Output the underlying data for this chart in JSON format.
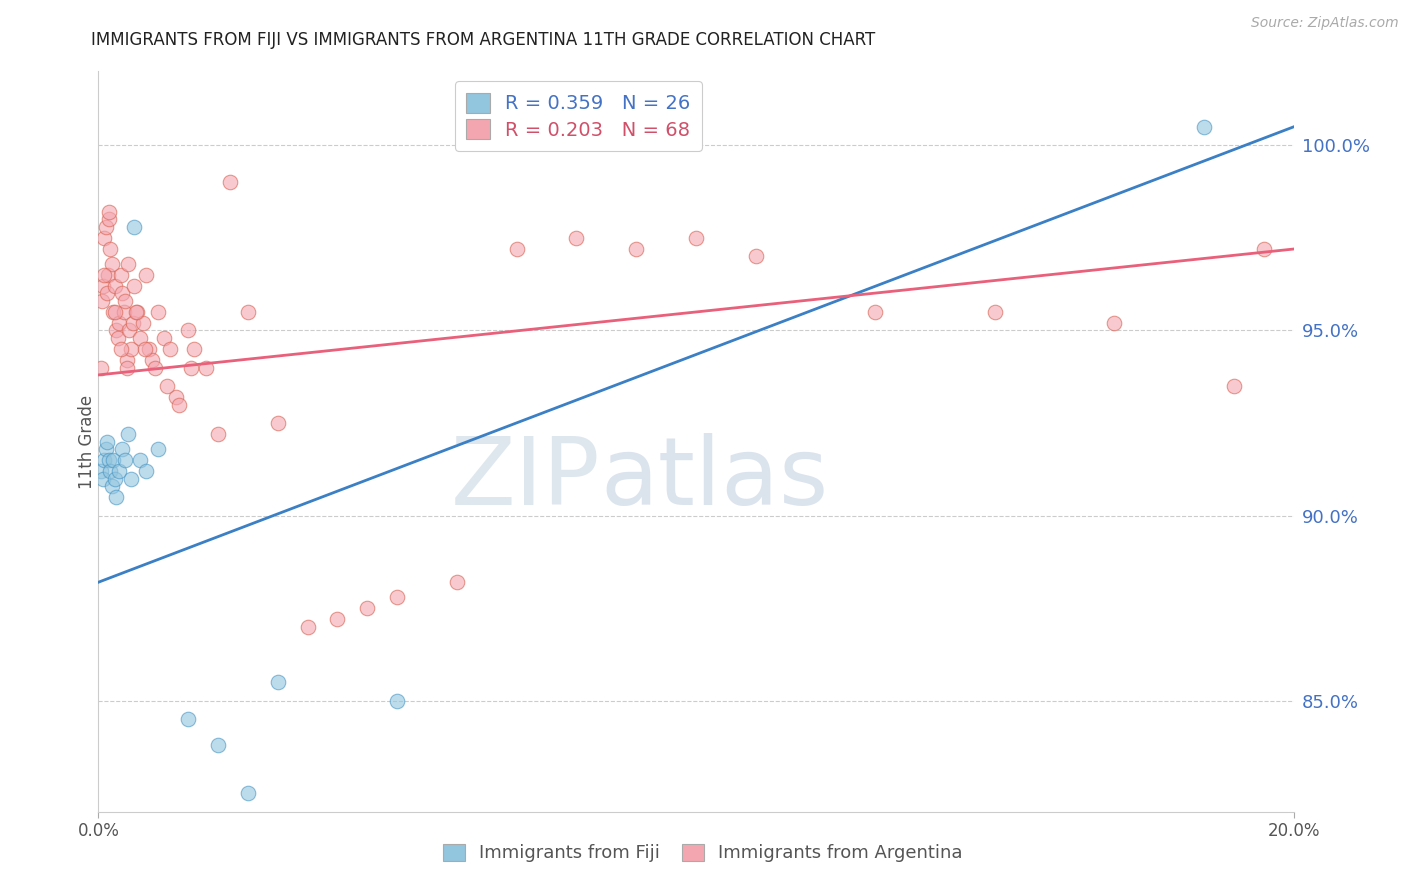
{
  "title": "IMMIGRANTS FROM FIJI VS IMMIGRANTS FROM ARGENTINA 11TH GRADE CORRELATION CHART",
  "source": "Source: ZipAtlas.com",
  "ylabel": "11th Grade",
  "yticks": [
    85.0,
    90.0,
    95.0,
    100.0
  ],
  "xlim": [
    0.0,
    20.0
  ],
  "ylim": [
    82.0,
    102.0
  ],
  "xtick_positions": [
    0.0,
    20.0
  ],
  "xtick_labels": [
    "0.0%",
    "20.0%"
  ],
  "fiji_R": 0.359,
  "fiji_N": 26,
  "argentina_R": 0.203,
  "argentina_N": 68,
  "fiji_color": "#92c5de",
  "argentina_color": "#f4a6b0",
  "fiji_edge_color": "#4393c3",
  "argentina_edge_color": "#d6604d",
  "fiji_line_color": "#3b7fc4",
  "argentina_line_color": "#e8607a",
  "watermark_zip": "ZIP",
  "watermark_atlas": "atlas",
  "fiji_line_x0": 0.0,
  "fiji_line_y0": 88.2,
  "fiji_line_x1": 20.0,
  "fiji_line_y1": 100.5,
  "argentina_line_x0": 0.0,
  "argentina_line_y0": 93.8,
  "argentina_line_x1": 20.0,
  "argentina_line_y1": 97.2,
  "fiji_x": [
    0.05,
    0.08,
    0.1,
    0.12,
    0.15,
    0.18,
    0.2,
    0.22,
    0.25,
    0.28,
    0.3,
    0.35,
    0.4,
    0.45,
    0.5,
    0.55,
    0.6,
    0.7,
    0.8,
    1.0,
    1.5,
    2.0,
    2.5,
    3.0,
    5.0,
    18.5
  ],
  "fiji_y": [
    91.2,
    91.0,
    91.5,
    91.8,
    92.0,
    91.5,
    91.2,
    90.8,
    91.5,
    91.0,
    90.5,
    91.2,
    91.8,
    91.5,
    92.2,
    91.0,
    97.8,
    91.5,
    91.2,
    91.8,
    84.5,
    83.8,
    82.5,
    85.5,
    85.0,
    100.5
  ],
  "argentina_x": [
    0.04,
    0.06,
    0.08,
    0.1,
    0.12,
    0.14,
    0.16,
    0.18,
    0.2,
    0.22,
    0.25,
    0.28,
    0.3,
    0.32,
    0.35,
    0.38,
    0.4,
    0.42,
    0.45,
    0.48,
    0.5,
    0.52,
    0.55,
    0.58,
    0.6,
    0.65,
    0.7,
    0.75,
    0.8,
    0.85,
    0.9,
    1.0,
    1.1,
    1.2,
    1.3,
    1.5,
    1.6,
    1.8,
    2.0,
    2.2,
    2.5,
    3.0,
    3.5,
    4.0,
    4.5,
    5.0,
    6.0,
    7.0,
    8.0,
    9.0,
    10.0,
    11.0,
    13.0,
    15.0,
    17.0,
    19.0,
    19.5,
    0.09,
    0.17,
    0.27,
    0.37,
    0.47,
    0.63,
    0.78,
    0.95,
    1.15,
    1.35,
    1.55
  ],
  "argentina_y": [
    94.0,
    95.8,
    96.2,
    97.5,
    97.8,
    96.0,
    96.5,
    98.0,
    97.2,
    96.8,
    95.5,
    96.2,
    95.0,
    94.8,
    95.2,
    96.5,
    96.0,
    95.5,
    95.8,
    94.2,
    96.8,
    95.0,
    94.5,
    95.2,
    96.2,
    95.5,
    94.8,
    95.2,
    96.5,
    94.5,
    94.2,
    95.5,
    94.8,
    94.5,
    93.2,
    95.0,
    94.5,
    94.0,
    92.2,
    99.0,
    95.5,
    92.5,
    87.0,
    87.2,
    87.5,
    87.8,
    88.2,
    97.2,
    97.5,
    97.2,
    97.5,
    97.0,
    95.5,
    95.5,
    95.2,
    93.5,
    97.2,
    96.5,
    98.2,
    95.5,
    94.5,
    94.0,
    95.5,
    94.5,
    94.0,
    93.5,
    93.0,
    94.0
  ]
}
